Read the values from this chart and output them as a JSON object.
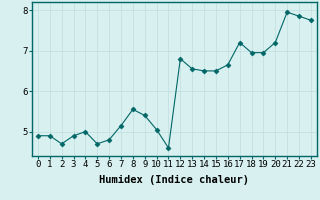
{
  "x": [
    0,
    1,
    2,
    3,
    4,
    5,
    6,
    7,
    8,
    9,
    10,
    11,
    12,
    13,
    14,
    15,
    16,
    17,
    18,
    19,
    20,
    21,
    22,
    23
  ],
  "y": [
    4.9,
    4.9,
    4.7,
    4.9,
    5.0,
    4.7,
    4.8,
    5.15,
    5.55,
    5.4,
    5.05,
    4.6,
    6.8,
    6.55,
    6.5,
    6.5,
    6.65,
    7.2,
    6.95,
    6.95,
    7.2,
    7.95,
    7.85,
    7.75
  ],
  "line_color": "#006666",
  "marker": "D",
  "marker_size": 2.5,
  "bg_color": "#d8f0f0",
  "grid_color": "#c0dcdc",
  "xlabel": "Humidex (Indice chaleur)",
  "xlim": [
    -0.5,
    23.5
  ],
  "ylim": [
    4.4,
    8.2
  ],
  "yticks": [
    5,
    6,
    7,
    8
  ],
  "xticks": [
    0,
    1,
    2,
    3,
    4,
    5,
    6,
    7,
    8,
    9,
    10,
    11,
    12,
    13,
    14,
    15,
    16,
    17,
    18,
    19,
    20,
    21,
    22,
    23
  ],
  "xlabel_fontsize": 7.5,
  "tick_fontsize": 6.5
}
